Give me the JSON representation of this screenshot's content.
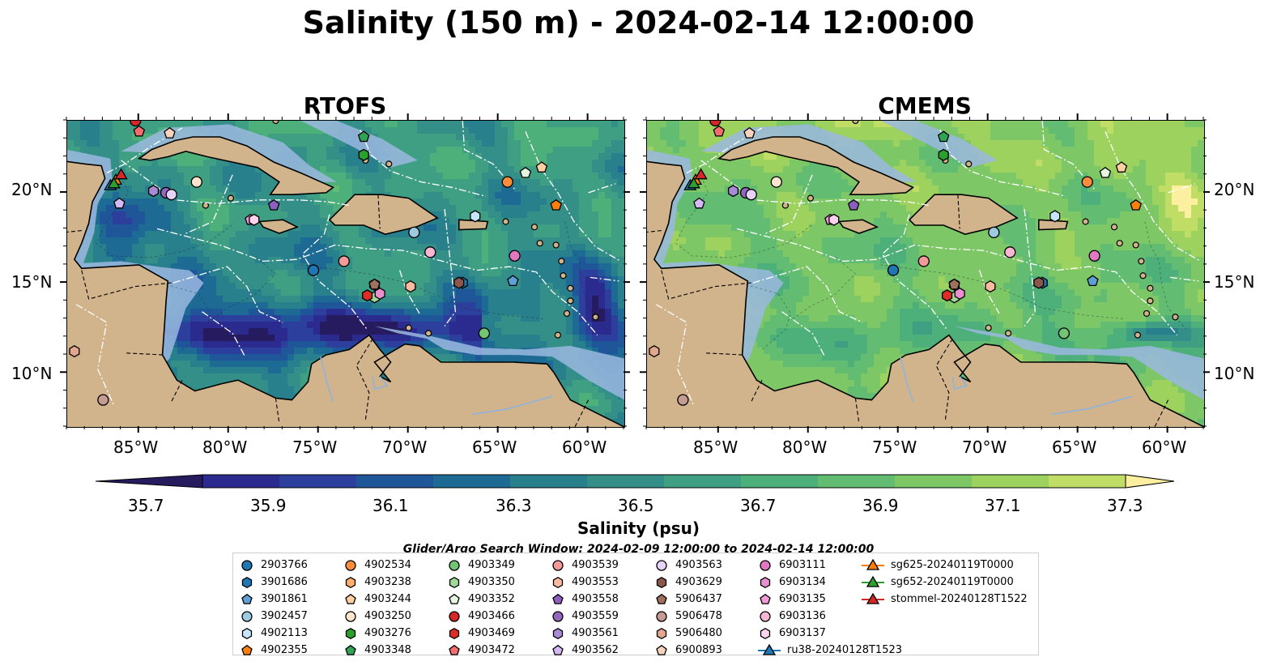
{
  "title": "Salinity (150 m) - 2024-02-14 12:00:00",
  "panels": [
    {
      "title": "RTOFS",
      "palette": "rtofs"
    },
    {
      "title": "CMEMS",
      "palette": "cmems"
    }
  ],
  "axes": {
    "lon_ticks": [
      "85°W",
      "80°W",
      "75°W",
      "70°W",
      "65°W",
      "60°W"
    ],
    "lat_ticks": [
      "20°N",
      "15°N",
      "10°N"
    ],
    "lon_range": [
      -89,
      -58
    ],
    "lat_range": [
      7,
      24
    ]
  },
  "colorbar": {
    "ticks": [
      "35.7",
      "35.9",
      "36.1",
      "36.3",
      "36.5",
      "36.7",
      "36.9",
      "37.1",
      "37.3"
    ],
    "label": "Salinity (psu)",
    "colors": [
      "#251b5e",
      "#2b2a8f",
      "#2d3f9c",
      "#1f5699",
      "#1d6b94",
      "#27808c",
      "#338f88",
      "#3e9f82",
      "#4daf7a",
      "#62bc71",
      "#7dc766",
      "#9cd25d",
      "#c0de66",
      "#fcf0a0"
    ]
  },
  "search_window": "Glider/Argo Search Window: 2024-02-09 12:00:00 to 2024-02-14 12:00:00",
  "legend": [
    {
      "label": "2903766",
      "marker": "circle",
      "color": "#1f77b4"
    },
    {
      "label": "3901686",
      "marker": "hexagon",
      "color": "#1f77b4"
    },
    {
      "label": "3901861",
      "marker": "pentagon",
      "color": "#5f9fd6"
    },
    {
      "label": "3902457",
      "marker": "circle",
      "color": "#9ecae1"
    },
    {
      "label": "4902113",
      "marker": "hexagon",
      "color": "#c6e6fb"
    },
    {
      "label": "4902355",
      "marker": "pentagon",
      "color": "#ff7f0e"
    },
    {
      "label": "4902534",
      "marker": "circle",
      "color": "#fd8d3c"
    },
    {
      "label": "4903238",
      "marker": "hexagon",
      "color": "#fdae6b"
    },
    {
      "label": "4903244",
      "marker": "pentagon",
      "color": "#fdd0a2"
    },
    {
      "label": "4903250",
      "marker": "circle",
      "color": "#fee6ce"
    },
    {
      "label": "4903276",
      "marker": "hexagon",
      "color": "#2ca02c"
    },
    {
      "label": "4903348",
      "marker": "pentagon",
      "color": "#31a354"
    },
    {
      "label": "4903349",
      "marker": "circle",
      "color": "#74c476"
    },
    {
      "label": "4903350",
      "marker": "hexagon",
      "color": "#a1d99b"
    },
    {
      "label": "4903352",
      "marker": "pentagon",
      "color": "#e5f5e0"
    },
    {
      "label": "4903466",
      "marker": "circle",
      "color": "#d62728"
    },
    {
      "label": "4903469",
      "marker": "hexagon",
      "color": "#de2d26"
    },
    {
      "label": "4903472",
      "marker": "pentagon",
      "color": "#f46d6d"
    },
    {
      "label": "4903539",
      "marker": "circle",
      "color": "#f49a9a"
    },
    {
      "label": "4903553",
      "marker": "hexagon",
      "color": "#fcbba1"
    },
    {
      "label": "4903558",
      "marker": "pentagon",
      "color": "#8c5fbf"
    },
    {
      "label": "4903559",
      "marker": "circle",
      "color": "#9467bd"
    },
    {
      "label": "4903561",
      "marker": "hexagon",
      "color": "#a88bd4"
    },
    {
      "label": "4903562",
      "marker": "pentagon",
      "color": "#d4b9f5"
    },
    {
      "label": "4903563",
      "marker": "circle",
      "color": "#e6d3f7"
    },
    {
      "label": "4903629",
      "marker": "hexagon",
      "color": "#8c564b"
    },
    {
      "label": "5906437",
      "marker": "pentagon",
      "color": "#a0705f"
    },
    {
      "label": "5906478",
      "marker": "circle",
      "color": "#c49c94"
    },
    {
      "label": "5906480",
      "marker": "hexagon",
      "color": "#e2a88f"
    },
    {
      "label": "6900893",
      "marker": "pentagon",
      "color": "#f7d3bd"
    },
    {
      "label": "6903111",
      "marker": "circle",
      "color": "#e377c2"
    },
    {
      "label": "6903134",
      "marker": "hexagon",
      "color": "#e88fcf"
    },
    {
      "label": "6903135",
      "marker": "pentagon",
      "color": "#f29ad7"
    },
    {
      "label": "6903136",
      "marker": "circle",
      "color": "#f7b6d2"
    },
    {
      "label": "6903137",
      "marker": "hexagon",
      "color": "#fbd3ec"
    },
    {
      "label": "ru38-20240128T1523",
      "marker": "triangle",
      "color": "#1f77b4"
    },
    {
      "label": "sg625-20240119T0000",
      "marker": "triangle",
      "color": "#ff7f0e"
    },
    {
      "label": "sg652-20240119T0000",
      "marker": "triangle",
      "color": "#2ca02c"
    },
    {
      "label": "stommel-20240128T1522",
      "marker": "triangle",
      "color": "#d62728"
    }
  ],
  "floats": [
    {
      "id": "2903766",
      "lon": -75.3,
      "lat": 15.7
    },
    {
      "id": "3901686",
      "lon": -67.0,
      "lat": 15.0
    },
    {
      "id": "3901861",
      "lon": -64.2,
      "lat": 15.1
    },
    {
      "id": "3902457",
      "lon": -69.7,
      "lat": 17.8
    },
    {
      "id": "4902113",
      "lon": -66.3,
      "lat": 18.7
    },
    {
      "id": "4902355",
      "lon": -61.8,
      "lat": 19.3
    },
    {
      "id": "4902534",
      "lon": -64.5,
      "lat": 20.6
    },
    {
      "id": "4903238",
      "lon": -71.9,
      "lat": 14.9
    },
    {
      "id": "4903244",
      "lon": -62.6,
      "lat": 21.4
    },
    {
      "id": "4903250",
      "lon": -81.8,
      "lat": 20.6
    },
    {
      "id": "4903276",
      "lon": -72.5,
      "lat": 22.1
    },
    {
      "id": "4903348",
      "lon": -72.5,
      "lat": 23.1
    },
    {
      "id": "4903349",
      "lon": -65.8,
      "lat": 12.2
    },
    {
      "id": "4903350",
      "lon": -71.9,
      "lat": 14.2
    },
    {
      "id": "4903352",
      "lon": -63.5,
      "lat": 21.1
    },
    {
      "id": "4903466",
      "lon": -85.2,
      "lat": 24.0
    },
    {
      "id": "4903469",
      "lon": -72.3,
      "lat": 14.3
    },
    {
      "id": "4903472",
      "lon": -85.0,
      "lat": 23.4
    },
    {
      "id": "4903539",
      "lon": -73.6,
      "lat": 16.2
    },
    {
      "id": "4903553",
      "lon": -69.9,
      "lat": 14.8
    },
    {
      "id": "4903558",
      "lon": -77.5,
      "lat": 19.3
    },
    {
      "id": "4903559",
      "lon": -83.5,
      "lat": 20.0
    },
    {
      "id": "4903561",
      "lon": -84.2,
      "lat": 20.1
    },
    {
      "id": "4903562",
      "lon": -86.1,
      "lat": 19.4
    },
    {
      "id": "4903563",
      "lon": -83.2,
      "lat": 19.9
    },
    {
      "id": "4903629",
      "lon": -67.2,
      "lat": 15.0
    },
    {
      "id": "5906437",
      "lon": -71.9,
      "lat": 14.9
    },
    {
      "id": "5906478",
      "lon": -87.0,
      "lat": 8.5
    },
    {
      "id": "5906480",
      "lon": -88.6,
      "lat": 11.2
    },
    {
      "id": "6900893",
      "lon": -83.3,
      "lat": 23.3
    },
    {
      "id": "6903111",
      "lon": -64.1,
      "lat": 16.5
    },
    {
      "id": "6903134",
      "lon": -71.6,
      "lat": 14.4
    },
    {
      "id": "6903135",
      "lon": -78.8,
      "lat": 18.5
    },
    {
      "id": "6903136",
      "lon": -68.8,
      "lat": 16.7
    },
    {
      "id": "6903137",
      "lon": -78.6,
      "lat": 18.5
    }
  ],
  "gliders": [
    {
      "id": "ru38-20240128T1523",
      "lon": -86.6,
      "lat": 20.4
    },
    {
      "id": "sg625-20240119T0000",
      "lon": -86.3,
      "lat": 20.7
    },
    {
      "id": "sg652-20240119T0000",
      "lon": -86.4,
      "lat": 20.5
    },
    {
      "id": "stommel-20240128T1522",
      "lon": -86.0,
      "lat": 21.0
    }
  ]
}
